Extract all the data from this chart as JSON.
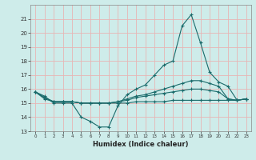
{
  "x": [
    0,
    1,
    2,
    3,
    4,
    5,
    6,
    7,
    8,
    9,
    10,
    11,
    12,
    13,
    14,
    15,
    16,
    17,
    18,
    19,
    20,
    21,
    22,
    23
  ],
  "line1": [
    15.8,
    15.5,
    15.0,
    15.0,
    15.0,
    14.0,
    13.7,
    13.3,
    13.3,
    14.8,
    15.6,
    16.0,
    16.3,
    17.0,
    17.7,
    18.0,
    20.5,
    21.3,
    19.3,
    17.2,
    16.5,
    16.2,
    15.2,
    15.3
  ],
  "line2": [
    15.8,
    15.4,
    15.1,
    15.1,
    15.1,
    15.0,
    15.0,
    15.0,
    15.0,
    15.1,
    15.3,
    15.5,
    15.6,
    15.8,
    16.0,
    16.2,
    16.4,
    16.6,
    16.6,
    16.4,
    16.2,
    15.3,
    15.2,
    15.3
  ],
  "line3": [
    15.8,
    15.4,
    15.1,
    15.1,
    15.1,
    15.0,
    15.0,
    15.0,
    15.0,
    15.1,
    15.2,
    15.4,
    15.5,
    15.6,
    15.7,
    15.8,
    15.9,
    16.0,
    16.0,
    15.9,
    15.8,
    15.3,
    15.2,
    15.3
  ],
  "line4": [
    15.8,
    15.3,
    15.1,
    15.1,
    15.1,
    15.0,
    15.0,
    15.0,
    15.0,
    15.0,
    15.0,
    15.1,
    15.1,
    15.1,
    15.1,
    15.2,
    15.2,
    15.2,
    15.2,
    15.2,
    15.2,
    15.2,
    15.2,
    15.3
  ],
  "ylim": [
    13,
    22
  ],
  "yticks": [
    13,
    14,
    15,
    16,
    17,
    18,
    19,
    20,
    21
  ],
  "xlim_min": -0.5,
  "xlim_max": 23.5,
  "xticks": [
    0,
    1,
    2,
    3,
    4,
    5,
    6,
    7,
    8,
    9,
    10,
    11,
    12,
    13,
    14,
    15,
    16,
    17,
    18,
    19,
    20,
    21,
    22,
    23
  ],
  "xlabel": "Humidex (Indice chaleur)",
  "bg_color": "#ceecea",
  "grid_color": "#e8b4b4",
  "line_color": "#1a6b6b"
}
